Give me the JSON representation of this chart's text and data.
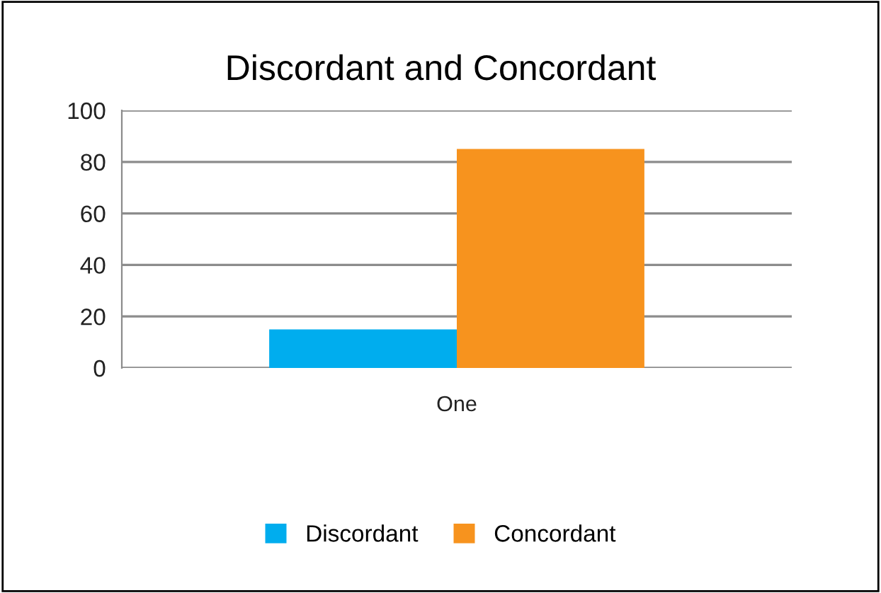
{
  "chart_data": {
    "type": "bar",
    "title": "Discordant and Concordant",
    "categories": [
      "One"
    ],
    "series": [
      {
        "name": "Discordant",
        "color": "#00adee",
        "values": [
          15
        ]
      },
      {
        "name": "Concordant",
        "color": "#f7931e",
        "values": [
          85
        ]
      }
    ],
    "ylim": [
      0,
      100
    ],
    "yticks": [
      0,
      20,
      40,
      60,
      80,
      100
    ],
    "grid": "y",
    "legend": "bottom"
  }
}
